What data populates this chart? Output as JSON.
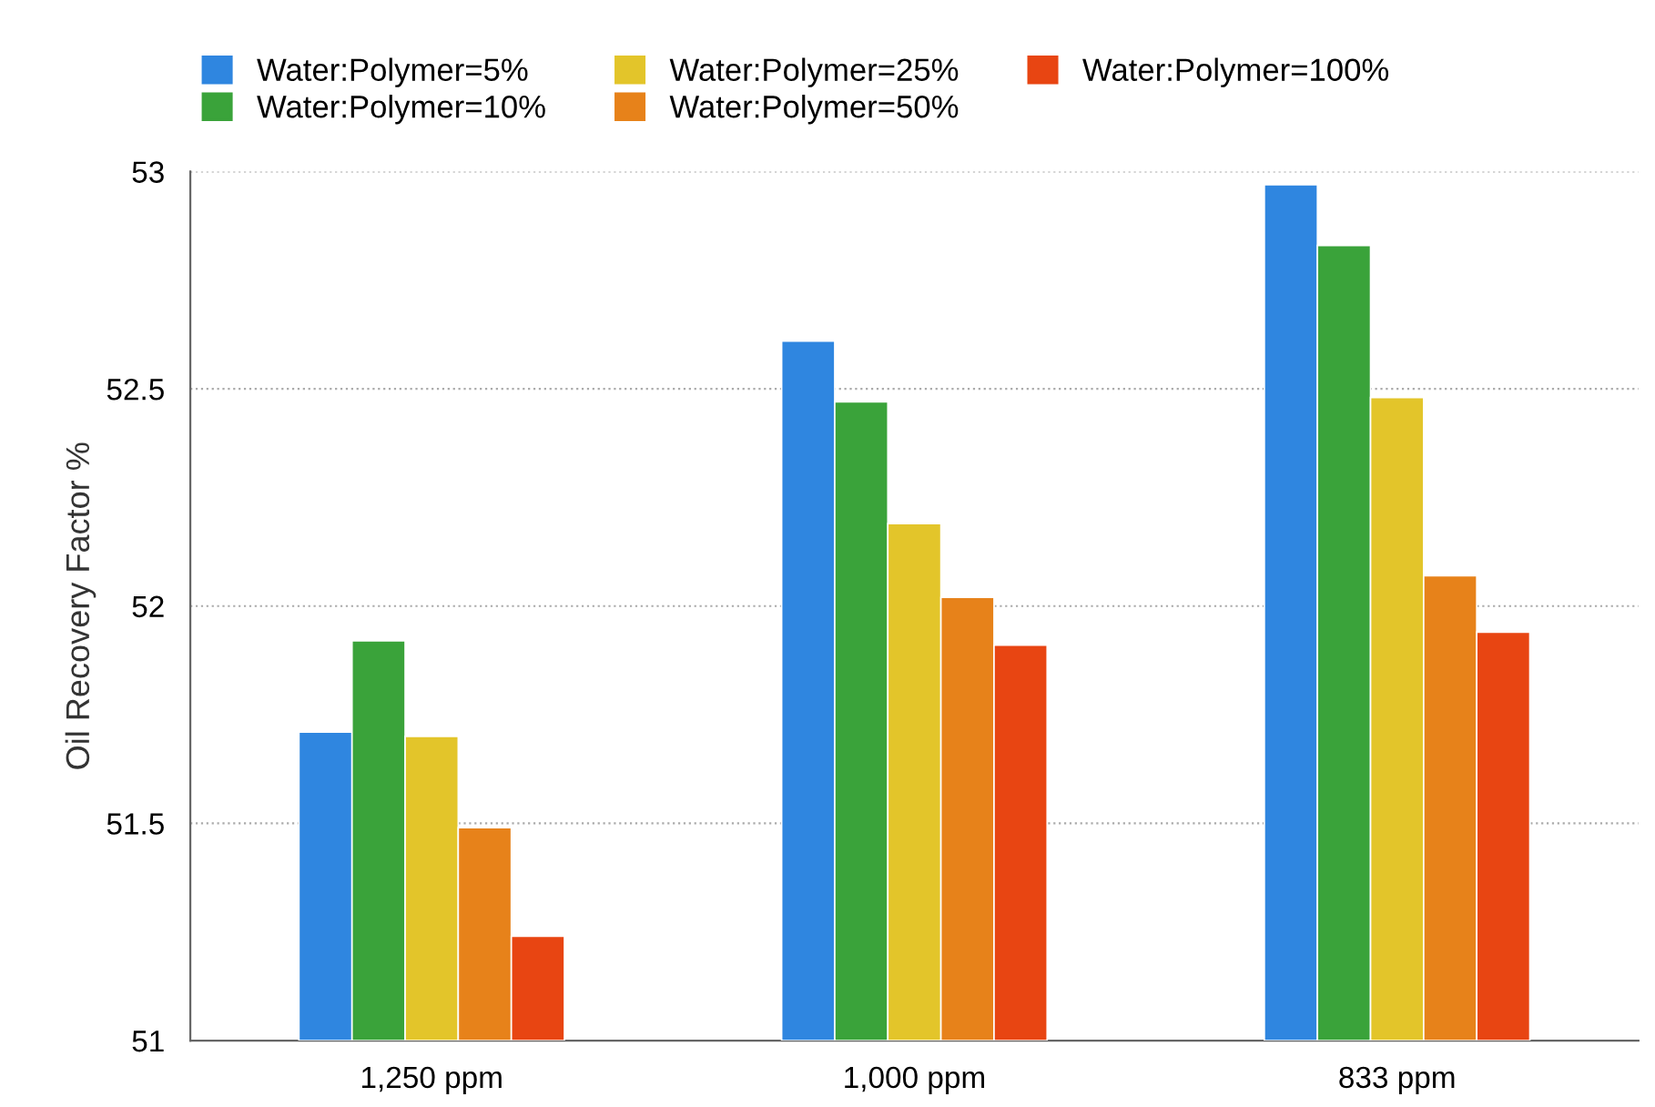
{
  "chart_data": {
    "type": "bar",
    "ylabel": "Oil Recovery Factor %",
    "categories": [
      "1,250 ppm",
      "1,000 ppm",
      "833 ppm"
    ],
    "series": [
      {
        "name": "Water:Polymer=5%",
        "color": "#2f86e0",
        "values": [
          51.71,
          52.61,
          52.97
        ]
      },
      {
        "name": "Water:Polymer=10%",
        "color": "#3aa33a",
        "values": [
          51.92,
          52.47,
          52.83
        ]
      },
      {
        "name": "Water:Polymer=25%",
        "color": "#e3c52a",
        "values": [
          51.7,
          52.19,
          52.48
        ]
      },
      {
        "name": "Water:Polymer=50%",
        "color": "#e7821a",
        "values": [
          51.49,
          52.02,
          52.07
        ]
      },
      {
        "name": "Water:Polymer=100%",
        "color": "#e84512",
        "values": [
          51.24,
          51.91,
          51.94
        ]
      }
    ],
    "ylim": [
      51,
      53
    ],
    "yticks": [
      51,
      51.5,
      52,
      52.5,
      53
    ],
    "grid": "y",
    "legend": "top"
  }
}
